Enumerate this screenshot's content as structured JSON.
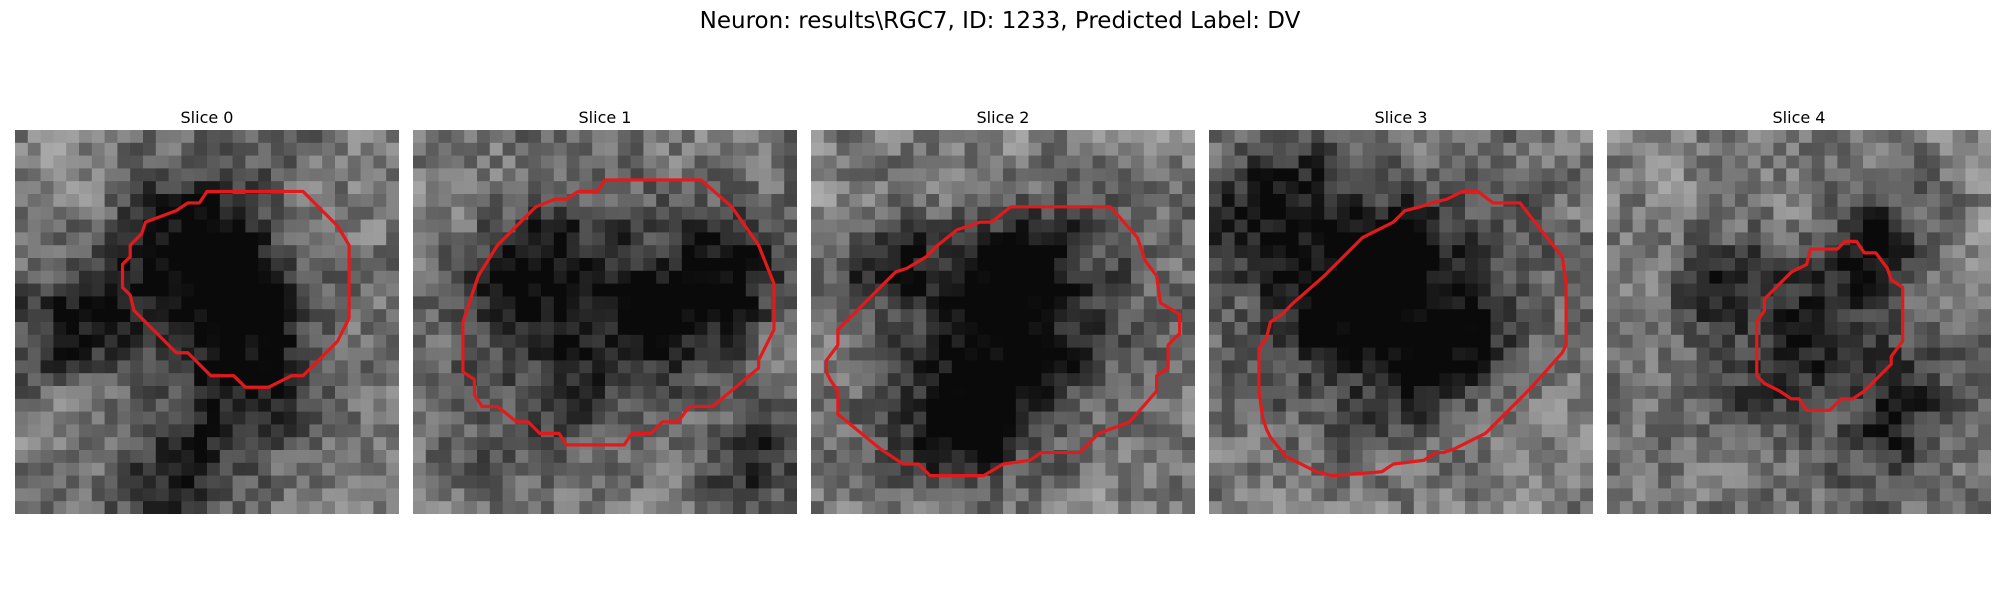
{
  "title": "Neuron: results\\RGC7, ID: 1233, Predicted Label: DV",
  "slices": [
    {
      "label": "Slice 0",
      "seed": 11,
      "blobs": [
        [
          0.45,
          0.3,
          0.22,
          -60
        ],
        [
          0.6,
          0.55,
          0.2,
          55
        ],
        [
          0.45,
          0.85,
          0.18,
          -55
        ],
        [
          0.15,
          0.5,
          0.15,
          -30
        ],
        [
          0.6,
          0.4,
          0.12,
          50
        ]
      ],
      "contour": [
        [
          0.5,
          0.16
        ],
        [
          0.75,
          0.16
        ],
        [
          0.84,
          0.25
        ],
        [
          0.87,
          0.3
        ],
        [
          0.87,
          0.49
        ],
        [
          0.84,
          0.55
        ],
        [
          0.75,
          0.64
        ],
        [
          0.72,
          0.64
        ],
        [
          0.66,
          0.67
        ],
        [
          0.6,
          0.67
        ],
        [
          0.57,
          0.64
        ],
        [
          0.51,
          0.64
        ],
        [
          0.45,
          0.58
        ],
        [
          0.42,
          0.58
        ],
        [
          0.31,
          0.47
        ],
        [
          0.3,
          0.43
        ],
        [
          0.28,
          0.41
        ],
        [
          0.28,
          0.35
        ],
        [
          0.3,
          0.33
        ],
        [
          0.3,
          0.3
        ],
        [
          0.33,
          0.27
        ],
        [
          0.34,
          0.24
        ],
        [
          0.42,
          0.21
        ],
        [
          0.45,
          0.19
        ],
        [
          0.48,
          0.19
        ]
      ]
    },
    {
      "label": "Slice 1",
      "seed": 23,
      "blobs": [
        [
          0.5,
          0.52,
          0.3,
          -35
        ],
        [
          0.3,
          0.35,
          0.15,
          -45
        ],
        [
          0.8,
          0.4,
          0.15,
          -30
        ],
        [
          0.9,
          0.85,
          0.12,
          -25
        ]
      ],
      "contour": [
        [
          0.5,
          0.13
        ],
        [
          0.75,
          0.13
        ],
        [
          0.83,
          0.2
        ],
        [
          0.9,
          0.3
        ],
        [
          0.94,
          0.4
        ],
        [
          0.94,
          0.52
        ],
        [
          0.9,
          0.6
        ],
        [
          0.9,
          0.62
        ],
        [
          0.78,
          0.72
        ],
        [
          0.72,
          0.72
        ],
        [
          0.69,
          0.76
        ],
        [
          0.65,
          0.76
        ],
        [
          0.62,
          0.79
        ],
        [
          0.57,
          0.79
        ],
        [
          0.55,
          0.82
        ],
        [
          0.4,
          0.82
        ],
        [
          0.38,
          0.79
        ],
        [
          0.33,
          0.79
        ],
        [
          0.3,
          0.76
        ],
        [
          0.27,
          0.76
        ],
        [
          0.22,
          0.72
        ],
        [
          0.18,
          0.72
        ],
        [
          0.16,
          0.69
        ],
        [
          0.16,
          0.65
        ],
        [
          0.13,
          0.63
        ],
        [
          0.13,
          0.5
        ],
        [
          0.17,
          0.38
        ],
        [
          0.22,
          0.3
        ],
        [
          0.32,
          0.2
        ],
        [
          0.37,
          0.18
        ],
        [
          0.4,
          0.18
        ],
        [
          0.43,
          0.16
        ],
        [
          0.48,
          0.16
        ]
      ]
    },
    {
      "label": "Slice 2",
      "seed": 37,
      "blobs": [
        [
          0.55,
          0.55,
          0.28,
          -45
        ],
        [
          0.5,
          0.4,
          0.15,
          -40
        ],
        [
          0.4,
          0.75,
          0.15,
          -45
        ],
        [
          0.2,
          0.35,
          0.12,
          -30
        ]
      ],
      "contour": [
        [
          0.55,
          0.2
        ],
        [
          0.78,
          0.2
        ],
        [
          0.85,
          0.28
        ],
        [
          0.87,
          0.34
        ],
        [
          0.9,
          0.38
        ],
        [
          0.91,
          0.45
        ],
        [
          0.96,
          0.48
        ],
        [
          0.96,
          0.53
        ],
        [
          0.93,
          0.56
        ],
        [
          0.93,
          0.62
        ],
        [
          0.9,
          0.64
        ],
        [
          0.9,
          0.68
        ],
        [
          0.83,
          0.76
        ],
        [
          0.75,
          0.79
        ],
        [
          0.7,
          0.84
        ],
        [
          0.6,
          0.84
        ],
        [
          0.57,
          0.86
        ],
        [
          0.5,
          0.87
        ],
        [
          0.45,
          0.9
        ],
        [
          0.31,
          0.9
        ],
        [
          0.28,
          0.87
        ],
        [
          0.24,
          0.87
        ],
        [
          0.18,
          0.83
        ],
        [
          0.07,
          0.74
        ],
        [
          0.07,
          0.68
        ],
        [
          0.05,
          0.65
        ],
        [
          0.04,
          0.63
        ],
        [
          0.04,
          0.6
        ],
        [
          0.07,
          0.56
        ],
        [
          0.07,
          0.52
        ],
        [
          0.16,
          0.43
        ],
        [
          0.22,
          0.37
        ],
        [
          0.25,
          0.36
        ],
        [
          0.3,
          0.33
        ],
        [
          0.33,
          0.3
        ],
        [
          0.38,
          0.26
        ],
        [
          0.44,
          0.24
        ],
        [
          0.47,
          0.24
        ],
        [
          0.52,
          0.2
        ]
      ]
    },
    {
      "label": "Slice 3",
      "seed": 41,
      "blobs": [
        [
          0.45,
          0.45,
          0.3,
          -40
        ],
        [
          0.15,
          0.2,
          0.18,
          -45
        ],
        [
          0.4,
          0.38,
          0.15,
          -35
        ],
        [
          0.62,
          0.58,
          0.15,
          -45
        ]
      ],
      "contour": [
        [
          0.7,
          0.16
        ],
        [
          0.74,
          0.19
        ],
        [
          0.81,
          0.19
        ],
        [
          0.88,
          0.28
        ],
        [
          0.92,
          0.33
        ],
        [
          0.93,
          0.4
        ],
        [
          0.93,
          0.56
        ],
        [
          0.92,
          0.58
        ],
        [
          0.84,
          0.67
        ],
        [
          0.78,
          0.73
        ],
        [
          0.72,
          0.79
        ],
        [
          0.64,
          0.83
        ],
        [
          0.61,
          0.84
        ],
        [
          0.59,
          0.84
        ],
        [
          0.56,
          0.86
        ],
        [
          0.48,
          0.87
        ],
        [
          0.45,
          0.89
        ],
        [
          0.32,
          0.9
        ],
        [
          0.28,
          0.89
        ],
        [
          0.24,
          0.87
        ],
        [
          0.2,
          0.85
        ],
        [
          0.16,
          0.8
        ],
        [
          0.15,
          0.78
        ],
        [
          0.14,
          0.75
        ],
        [
          0.13,
          0.68
        ],
        [
          0.13,
          0.57
        ],
        [
          0.15,
          0.54
        ],
        [
          0.16,
          0.5
        ],
        [
          0.19,
          0.48
        ],
        [
          0.22,
          0.45
        ],
        [
          0.3,
          0.38
        ],
        [
          0.35,
          0.33
        ],
        [
          0.4,
          0.28
        ],
        [
          0.44,
          0.26
        ],
        [
          0.48,
          0.24
        ],
        [
          0.51,
          0.21
        ],
        [
          0.55,
          0.2
        ],
        [
          0.58,
          0.19
        ],
        [
          0.62,
          0.18
        ],
        [
          0.66,
          0.16
        ]
      ]
    },
    {
      "label": "Slice 4",
      "seed": 53,
      "blobs": [
        [
          0.52,
          0.55,
          0.2,
          -40
        ],
        [
          0.3,
          0.4,
          0.12,
          -30
        ],
        [
          0.7,
          0.3,
          0.12,
          -45
        ],
        [
          0.75,
          0.75,
          0.15,
          -45
        ]
      ],
      "contour": [
        [
          0.53,
          0.31
        ],
        [
          0.6,
          0.31
        ],
        [
          0.62,
          0.29
        ],
        [
          0.65,
          0.29
        ],
        [
          0.67,
          0.32
        ],
        [
          0.7,
          0.32
        ],
        [
          0.73,
          0.36
        ],
        [
          0.74,
          0.39
        ],
        [
          0.77,
          0.41
        ],
        [
          0.77,
          0.55
        ],
        [
          0.74,
          0.59
        ],
        [
          0.74,
          0.61
        ],
        [
          0.7,
          0.65
        ],
        [
          0.67,
          0.68
        ],
        [
          0.64,
          0.7
        ],
        [
          0.61,
          0.7
        ],
        [
          0.58,
          0.73
        ],
        [
          0.52,
          0.73
        ],
        [
          0.5,
          0.7
        ],
        [
          0.48,
          0.7
        ],
        [
          0.45,
          0.68
        ],
        [
          0.41,
          0.66
        ],
        [
          0.39,
          0.64
        ],
        [
          0.39,
          0.5
        ],
        [
          0.41,
          0.47
        ],
        [
          0.41,
          0.44
        ],
        [
          0.45,
          0.4
        ],
        [
          0.48,
          0.37
        ],
        [
          0.52,
          0.35
        ]
      ]
    }
  ],
  "colors": {
    "contour": "#e31a1c",
    "background": "#ffffff"
  }
}
